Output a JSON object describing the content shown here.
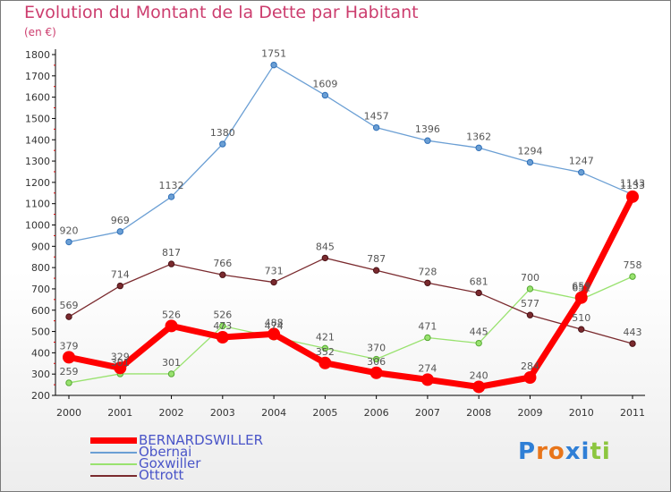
{
  "title": "Evolution du Montant de la Dette par Habitant",
  "subtitle": "(en €)",
  "brand": "Proxiti",
  "chart_data": {
    "type": "line",
    "title": "Evolution du Montant de la Dette par Habitant",
    "ylabel": "(en €)",
    "xlabel": "",
    "categories": [
      "2000",
      "2001",
      "2002",
      "2003",
      "2004",
      "2005",
      "2006",
      "2007",
      "2008",
      "2009",
      "2010",
      "2011"
    ],
    "ylim": [
      200,
      1800
    ],
    "yticks": [
      200,
      300,
      400,
      500,
      600,
      700,
      800,
      900,
      1000,
      1100,
      1200,
      1300,
      1400,
      1500,
      1600,
      1700,
      1800
    ],
    "grid": false,
    "legend_position": "bottom-left",
    "series": [
      {
        "name": "BERNARDSWILLER",
        "color": "#ff0000",
        "values": [
          379,
          329,
          526,
          473,
          488,
          352,
          306,
          274,
          240,
          284,
          659,
          1133
        ],
        "labels": [
          "379",
          "329",
          "526",
          "473",
          "488",
          "352",
          "306",
          "274",
          "240",
          "284",
          "659",
          "1133"
        ]
      },
      {
        "name": "Obernai",
        "color": "#6b9fd4",
        "values": [
          920,
          969,
          1132,
          1380,
          1751,
          1609,
          1457,
          1396,
          1362,
          1294,
          1247,
          1143
        ],
        "labels": [
          "920",
          "969",
          "1132",
          "1380",
          "1751",
          "1609",
          "1457",
          "1396",
          "1362",
          "1294",
          "1247",
          "1143"
        ]
      },
      {
        "name": "Goxwiller",
        "color": "#99e26f",
        "values": [
          259,
          301,
          301,
          526,
          474,
          421,
          370,
          471,
          445,
          700,
          651,
          758
        ],
        "labels": [
          "259",
          "301",
          "301",
          "526",
          "474",
          "421",
          "370",
          "471",
          "445",
          "700",
          "651",
          "758"
        ]
      },
      {
        "name": "Ottrott",
        "color": "#7a2a2e",
        "values": [
          569,
          714,
          817,
          766,
          731,
          845,
          787,
          728,
          681,
          577,
          510,
          443
        ],
        "labels": [
          "569",
          "714",
          "817",
          "766",
          "731",
          "845",
          "787",
          "728",
          "681",
          "577",
          "510",
          "443"
        ]
      }
    ]
  }
}
